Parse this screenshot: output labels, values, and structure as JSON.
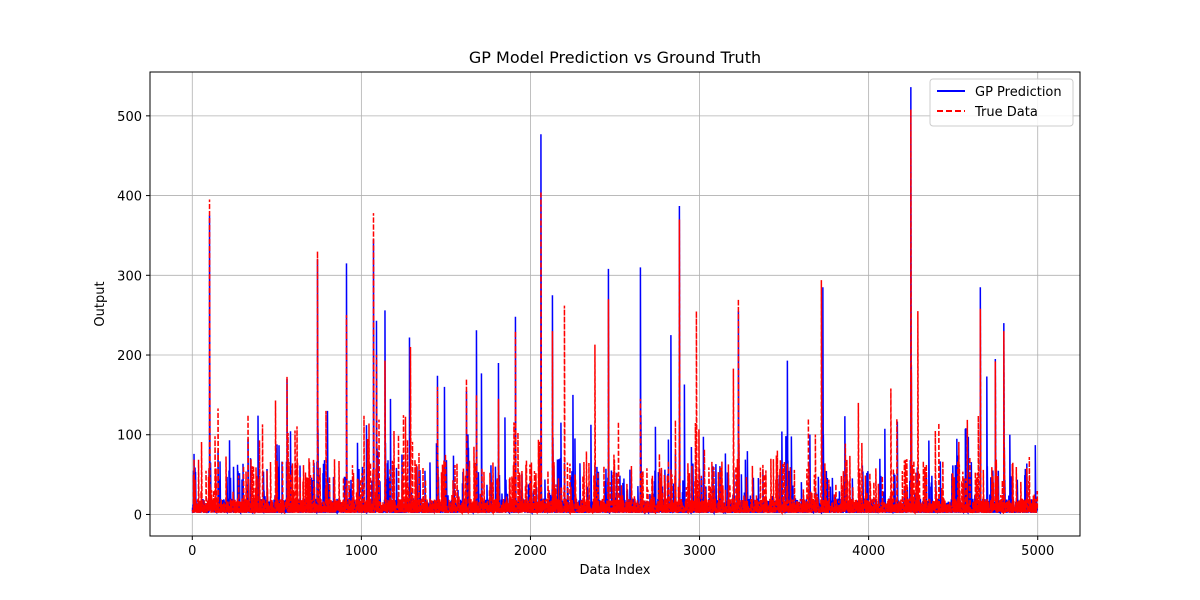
{
  "chart_data": {
    "type": "line",
    "title": "GP Model Prediction vs Ground Truth",
    "xlabel": "Data Index",
    "ylabel": "Output",
    "xlim": [
      -250,
      5250
    ],
    "ylim": [
      -27,
      555
    ],
    "xticks": [
      0,
      1000,
      2000,
      3000,
      4000,
      5000
    ],
    "yticks": [
      0,
      100,
      200,
      300,
      400,
      500
    ],
    "grid": true,
    "legend_position": "top-right",
    "n_points": 5000,
    "series": [
      {
        "name": "GP Prediction",
        "color": "#0000ff",
        "style": "solid",
        "peaks": [
          [
            100,
            375
          ],
          [
            150,
            80
          ],
          [
            330,
            95
          ],
          [
            500,
            88
          ],
          [
            560,
            170
          ],
          [
            740,
            320
          ],
          [
            800,
            130
          ],
          [
            910,
            315
          ],
          [
            1030,
            112
          ],
          [
            1070,
            345
          ],
          [
            1090,
            243
          ],
          [
            1140,
            256
          ],
          [
            1170,
            145
          ],
          [
            1285,
            222
          ],
          [
            1450,
            174
          ],
          [
            1490,
            160
          ],
          [
            1620,
            155
          ],
          [
            1680,
            231
          ],
          [
            1710,
            177
          ],
          [
            1810,
            190
          ],
          [
            1910,
            248
          ],
          [
            2060,
            477
          ],
          [
            2130,
            275
          ],
          [
            2250,
            150
          ],
          [
            2460,
            308
          ],
          [
            2650,
            310
          ],
          [
            2830,
            225
          ],
          [
            2880,
            387
          ],
          [
            2910,
            163
          ],
          [
            3230,
            255
          ],
          [
            3520,
            193
          ],
          [
            3730,
            285
          ],
          [
            4250,
            536
          ],
          [
            4660,
            285
          ],
          [
            4700,
            173
          ],
          [
            4750,
            195
          ],
          [
            4800,
            240
          ]
        ]
      },
      {
        "name": "True Data",
        "color": "#ff0000",
        "style": "dashed",
        "peaks": [
          [
            100,
            395
          ],
          [
            150,
            133
          ],
          [
            330,
            125
          ],
          [
            490,
            143
          ],
          [
            560,
            173
          ],
          [
            740,
            330
          ],
          [
            790,
            130
          ],
          [
            910,
            250
          ],
          [
            1070,
            378
          ],
          [
            1090,
            200
          ],
          [
            1140,
            193
          ],
          [
            1290,
            210
          ],
          [
            1450,
            160
          ],
          [
            1620,
            170
          ],
          [
            1680,
            150
          ],
          [
            1810,
            145
          ],
          [
            1910,
            230
          ],
          [
            2060,
            405
          ],
          [
            2130,
            230
          ],
          [
            2200,
            262
          ],
          [
            2380,
            213
          ],
          [
            2460,
            270
          ],
          [
            2650,
            145
          ],
          [
            2880,
            370
          ],
          [
            2980,
            255
          ],
          [
            3200,
            183
          ],
          [
            3230,
            270
          ],
          [
            3720,
            294
          ],
          [
            3940,
            140
          ],
          [
            4130,
            158
          ],
          [
            4250,
            508
          ],
          [
            4290,
            255
          ],
          [
            4660,
            258
          ],
          [
            4750,
            192
          ],
          [
            4800,
            230
          ]
        ]
      }
    ]
  }
}
